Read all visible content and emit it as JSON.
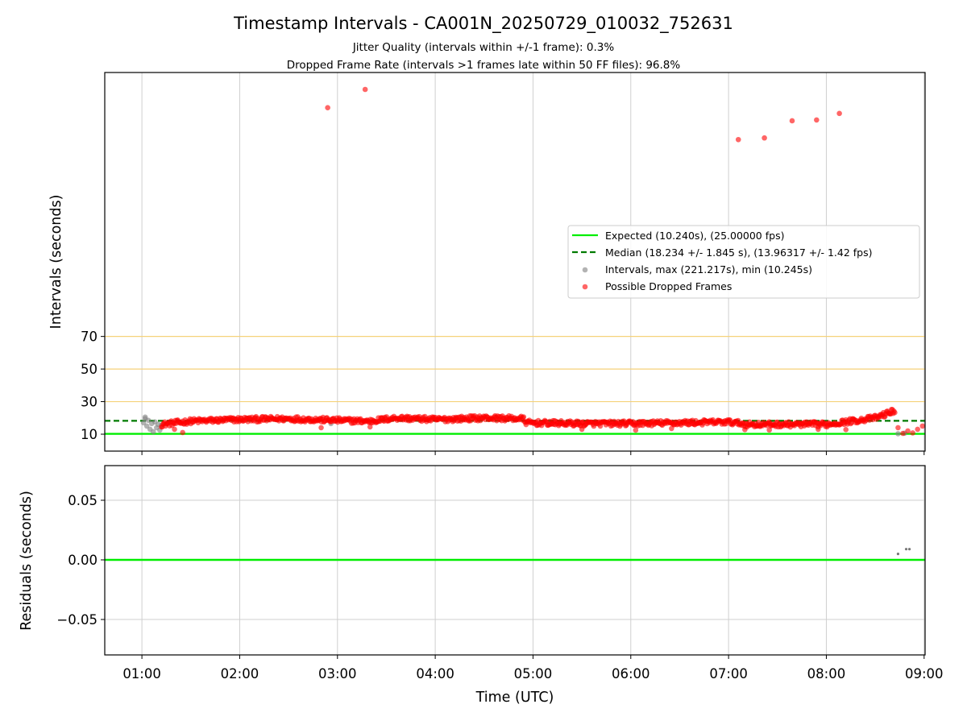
{
  "chart_data": [
    {
      "type": "scatter",
      "title": "Timestamp Intervals - CA001N_20250729_010032_752631",
      "subtitle_1": "Jitter Quality (intervals within +/-1 frame): 0.3%",
      "subtitle_2": "Dropped Frame Rate (intervals >1 frames late within 50 FF files): 96.8%",
      "ylabel": "Intervals (seconds)",
      "y_ticks": [
        10,
        30,
        50,
        70
      ],
      "y_tick_labels": [
        "10",
        "30",
        "50",
        "70"
      ],
      "x_ticks": [
        1,
        2,
        3,
        4,
        5,
        6,
        7,
        8,
        9
      ],
      "xlim_hours": [
        0.62,
        9.01
      ],
      "grid": true,
      "legend_position": "center-right",
      "legend": [
        "Expected (10.240s), (25.00000 fps)",
        "Median (18.234 +/- 1.845 s), (13.96317 +/- 1.42 fps)",
        "Intervals, max (221.217s), min (10.245s)",
        "Possible Dropped Frames"
      ],
      "expected_interval": 10.24,
      "median_interval": 18.234,
      "reference_levels": [
        30,
        50,
        70
      ],
      "colors": {
        "expected": "#00ee00",
        "median": "#007a00",
        "intervals": "#808080",
        "dropped": "#ff0000",
        "reference": "#f5d27a"
      },
      "outliers": [
        {
          "x": "02:54",
          "y": 210
        },
        {
          "x": "03:17",
          "y": 221.2
        },
        {
          "x": "07:06",
          "y": 190.5
        },
        {
          "x": "07:22",
          "y": 191.5
        },
        {
          "x": "07:39",
          "y": 202
        },
        {
          "x": "07:54",
          "y": 202.5
        },
        {
          "x": "08:08",
          "y": 206.5
        }
      ],
      "dropped_trend": [
        {
          "x": "01:12",
          "y": 16
        },
        {
          "x": "01:30",
          "y": 18
        },
        {
          "x": "02:00",
          "y": 19
        },
        {
          "x": "02:30",
          "y": 19.5
        },
        {
          "x": "03:00",
          "y": 18.5
        },
        {
          "x": "03:20",
          "y": 18
        },
        {
          "x": "03:36",
          "y": 20
        },
        {
          "x": "04:00",
          "y": 19
        },
        {
          "x": "04:30",
          "y": 20
        },
        {
          "x": "04:54",
          "y": 19.5
        },
        {
          "x": "04:56",
          "y": 17
        },
        {
          "x": "05:30",
          "y": 16.5
        },
        {
          "x": "06:00",
          "y": 16.5
        },
        {
          "x": "06:30",
          "y": 17
        },
        {
          "x": "07:00",
          "y": 17.5
        },
        {
          "x": "07:12",
          "y": 16
        },
        {
          "x": "07:40",
          "y": 16
        },
        {
          "x": "08:00",
          "y": 16
        },
        {
          "x": "08:15",
          "y": 18
        },
        {
          "x": "08:30",
          "y": 20
        },
        {
          "x": "08:42",
          "y": 24.5
        }
      ],
      "dropped_tail": [
        {
          "x": "08:44",
          "y": 14
        },
        {
          "x": "08:47",
          "y": 10.5
        },
        {
          "x": "08:50",
          "y": 12
        },
        {
          "x": "08:53",
          "y": 10.8
        },
        {
          "x": "08:56",
          "y": 13
        },
        {
          "x": "08:59",
          "y": 15
        }
      ],
      "dropped_lows": [
        {
          "x": "01:20",
          "y": 13
        },
        {
          "x": "01:25",
          "y": 11
        },
        {
          "x": "02:50",
          "y": 14
        },
        {
          "x": "03:20",
          "y": 14.5
        },
        {
          "x": "05:30",
          "y": 13
        },
        {
          "x": "06:03",
          "y": 12.5
        },
        {
          "x": "06:25",
          "y": 13.5
        },
        {
          "x": "07:10",
          "y": 12.8
        },
        {
          "x": "07:25",
          "y": 12.6
        },
        {
          "x": "07:55",
          "y": 13
        },
        {
          "x": "08:12",
          "y": 12.8
        }
      ],
      "gray_intervals": [
        {
          "x": "01:01",
          "y": 17
        },
        {
          "x": "01:02",
          "y": 19.5
        },
        {
          "x": "01:03",
          "y": 15
        },
        {
          "x": "01:04",
          "y": 18.5
        },
        {
          "x": "01:05",
          "y": 13
        },
        {
          "x": "01:06",
          "y": 16.5
        },
        {
          "x": "01:07",
          "y": 11.5
        },
        {
          "x": "01:08",
          "y": 17.5
        },
        {
          "x": "01:09",
          "y": 14
        },
        {
          "x": "01:10",
          "y": 16
        },
        {
          "x": "01:11",
          "y": 12.5
        },
        {
          "x": "01:12",
          "y": 15.5
        },
        {
          "x": "01:02",
          "y": 20.5
        },
        {
          "x": "02:56",
          "y": 16.5
        },
        {
          "x": "07:18",
          "y": 16
        },
        {
          "x": "08:44",
          "y": 10.3
        },
        {
          "x": "08:48",
          "y": 10.6
        }
      ]
    },
    {
      "type": "scatter",
      "ylabel": "Residuals (seconds)",
      "xlabel": "Time (UTC)",
      "ylim": [
        -0.08,
        0.08
      ],
      "y_ticks": [
        0.05,
        0.0,
        -0.05
      ],
      "y_tick_labels": [
        "0.05",
        "0.00",
        "−0.05"
      ],
      "x_tick_labels": [
        "01:00",
        "02:00",
        "03:00",
        "04:00",
        "05:00",
        "06:00",
        "07:00",
        "08:00",
        "09:00"
      ],
      "residual_line": 0.0,
      "points": [
        {
          "x": "08:44",
          "y": 0.005
        },
        {
          "x": "08:49",
          "y": 0.009
        },
        {
          "x": "08:51",
          "y": 0.009
        }
      ]
    }
  ]
}
